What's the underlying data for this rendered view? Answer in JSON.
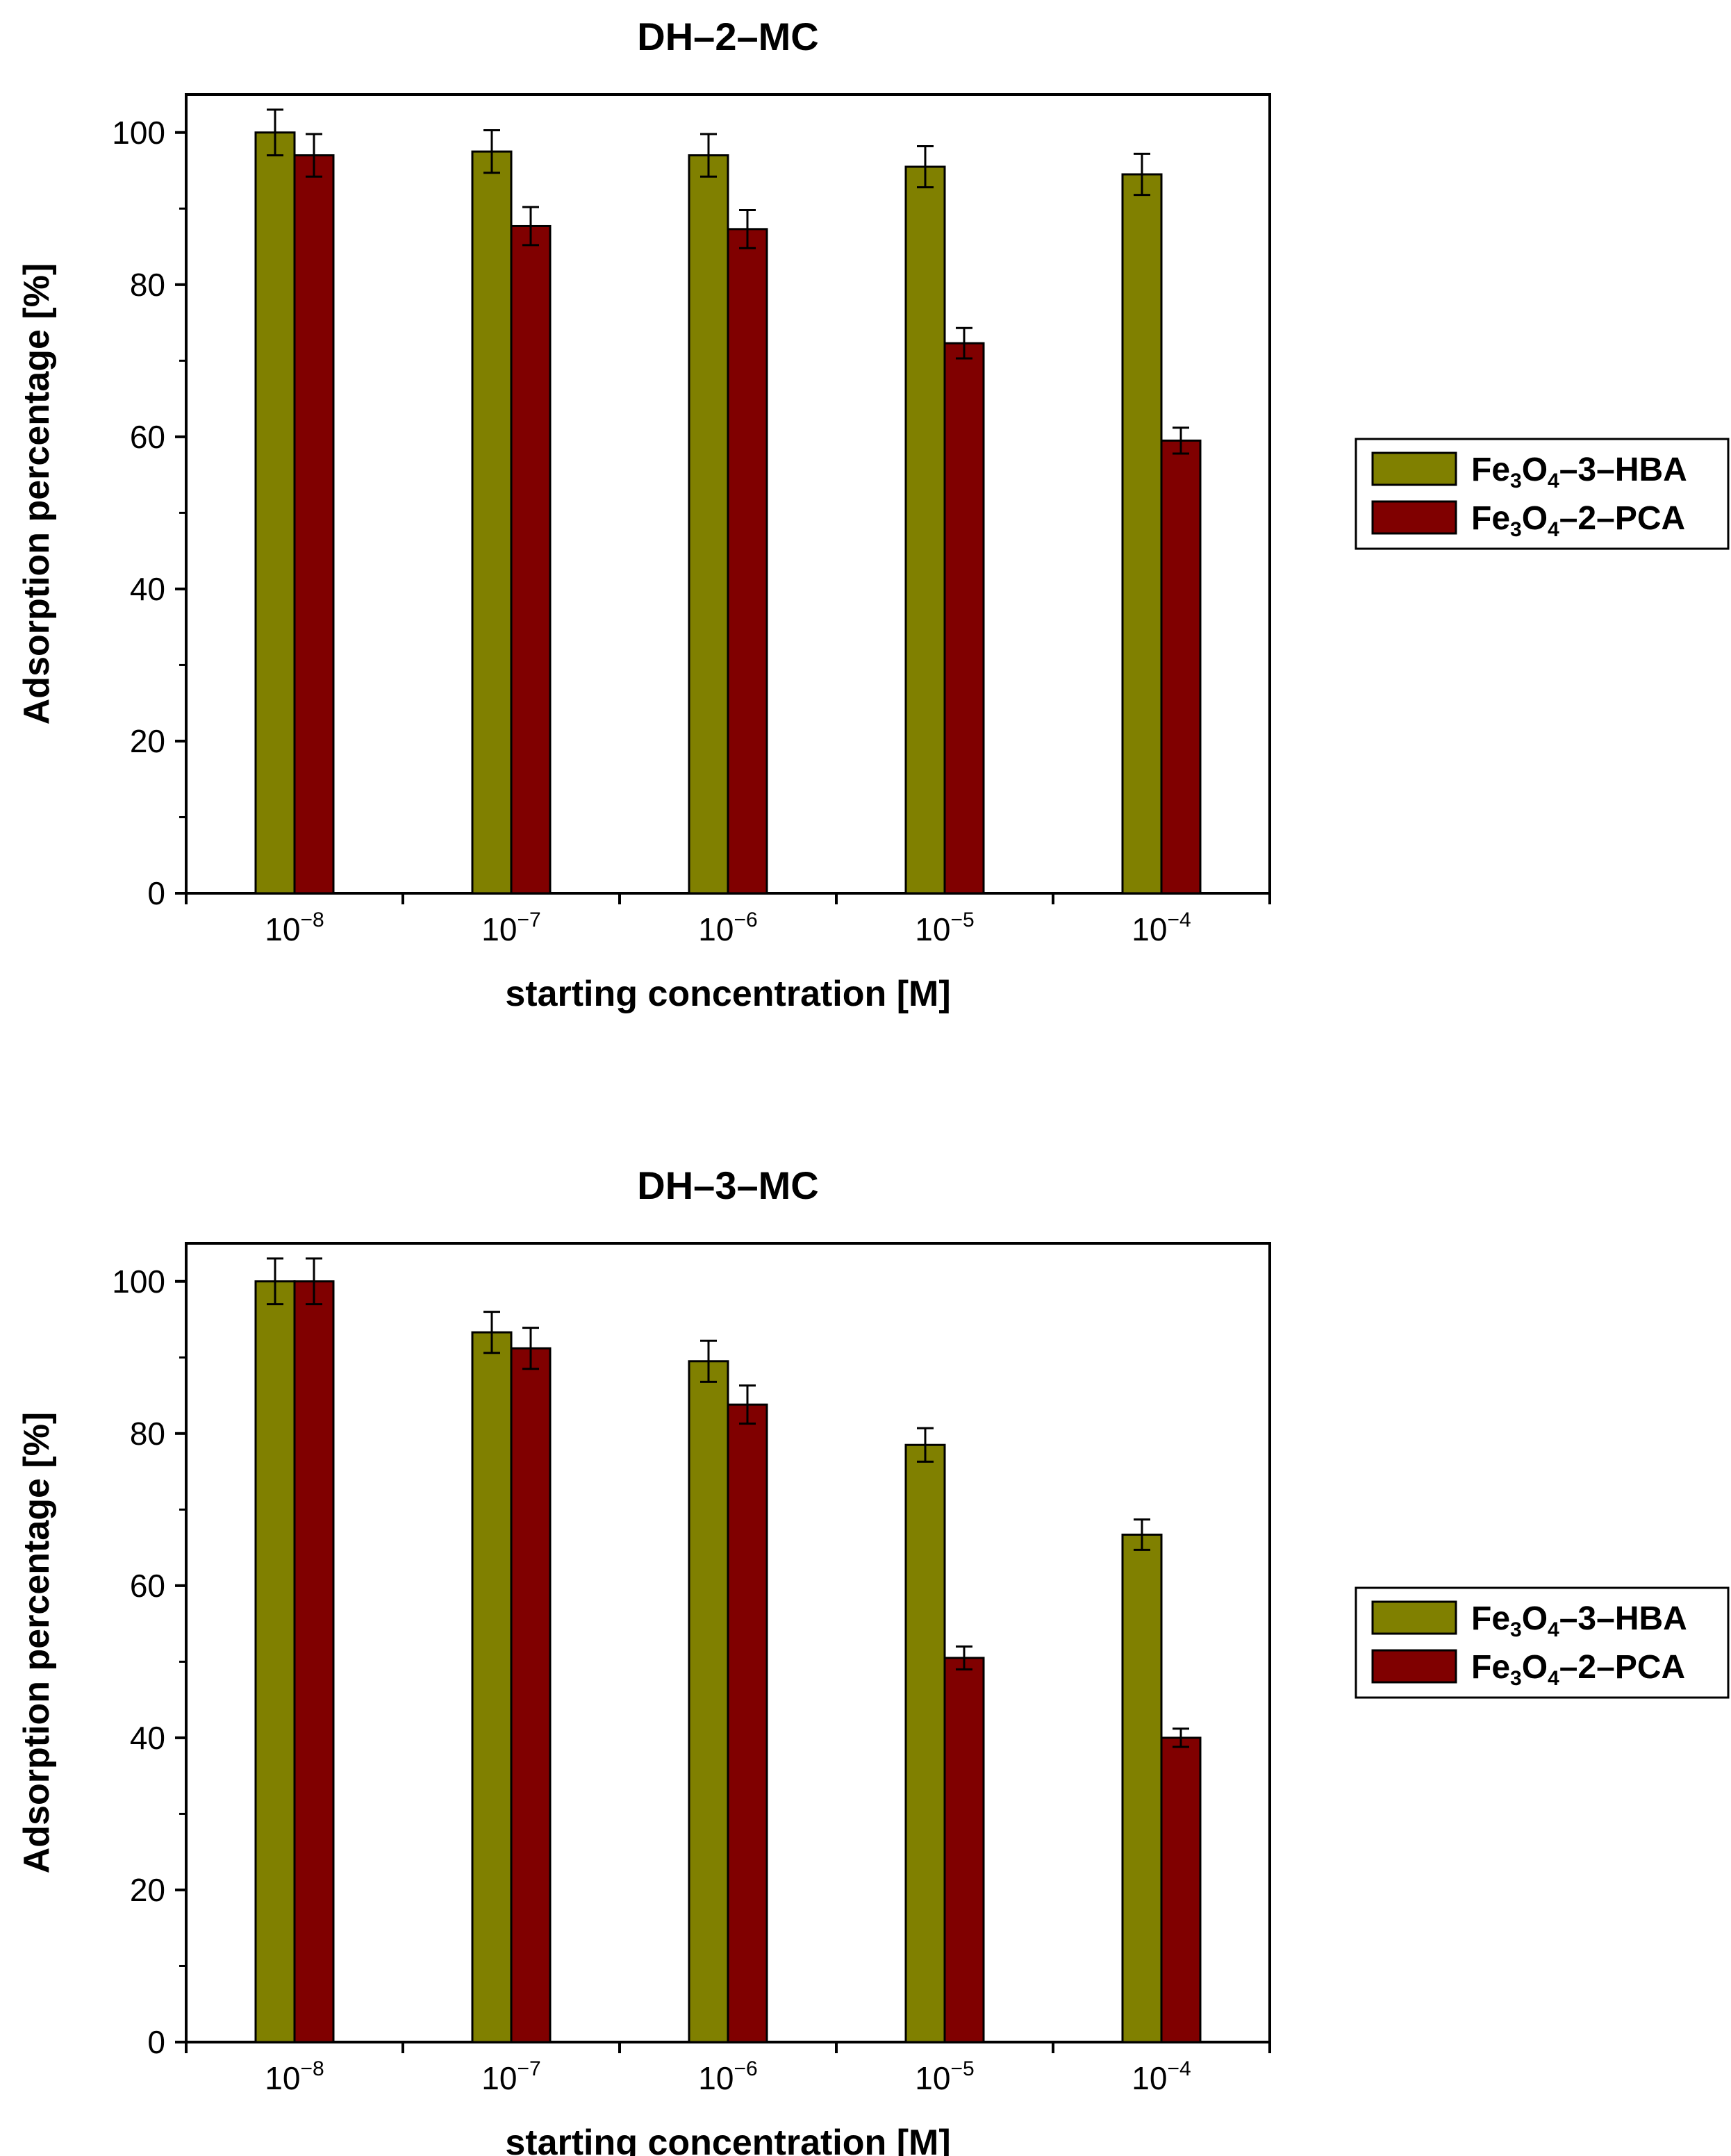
{
  "colors": {
    "hba": "#808000",
    "pca": "#800000",
    "frame": "#000000",
    "background": "#ffffff"
  },
  "chart_data": [
    {
      "type": "bar",
      "title": "DH–2–MC",
      "xlabel": "starting concentration [M]",
      "ylabel": "Adsorption percentage [%]",
      "ylim": [
        0,
        105
      ],
      "yticks": [
        0,
        20,
        40,
        60,
        80,
        100
      ],
      "categories": [
        {
          "base": "10",
          "exp": "−8"
        },
        {
          "base": "10",
          "exp": "−7"
        },
        {
          "base": "10",
          "exp": "−6"
        },
        {
          "base": "10",
          "exp": "−5"
        },
        {
          "base": "10",
          "exp": "−4"
        }
      ],
      "series": [
        {
          "name_base": "Fe",
          "name_sub1": "3",
          "name_mid": "O",
          "name_sub2": "4",
          "name_tail": "–3–HBA",
          "color_key": "hba",
          "values": [
            100,
            97.5,
            97,
            95.5,
            94.5
          ],
          "errors": [
            3,
            2.8,
            2.8,
            2.7,
            2.7
          ]
        },
        {
          "name_base": "Fe",
          "name_sub1": "3",
          "name_mid": "O",
          "name_sub2": "4",
          "name_tail": "–2–PCA",
          "color_key": "pca",
          "values": [
            97,
            87.7,
            87.3,
            72.3,
            59.5
          ],
          "errors": [
            2.8,
            2.5,
            2.5,
            2.0,
            1.7
          ]
        }
      ],
      "legend_position": "right"
    },
    {
      "type": "bar",
      "title": "DH–3–MC",
      "xlabel": "starting concentration [M]",
      "ylabel": "Adsorption percentage [%]",
      "ylim": [
        0,
        105
      ],
      "yticks": [
        0,
        20,
        40,
        60,
        80,
        100
      ],
      "categories": [
        {
          "base": "10",
          "exp": "−8"
        },
        {
          "base": "10",
          "exp": "−7"
        },
        {
          "base": "10",
          "exp": "−6"
        },
        {
          "base": "10",
          "exp": "−5"
        },
        {
          "base": "10",
          "exp": "−4"
        }
      ],
      "series": [
        {
          "name_base": "Fe",
          "name_sub1": "3",
          "name_mid": "O",
          "name_sub2": "4",
          "name_tail": "–3–HBA",
          "color_key": "hba",
          "values": [
            100,
            93.3,
            89.5,
            78.5,
            66.7
          ],
          "errors": [
            3,
            2.7,
            2.7,
            2.2,
            2.0
          ]
        },
        {
          "name_base": "Fe",
          "name_sub1": "3",
          "name_mid": "O",
          "name_sub2": "4",
          "name_tail": "–2–PCA",
          "color_key": "pca",
          "values": [
            100,
            91.2,
            83.8,
            50.5,
            40
          ],
          "errors": [
            3,
            2.7,
            2.5,
            1.5,
            1.2
          ]
        }
      ],
      "legend_position": "right"
    }
  ]
}
